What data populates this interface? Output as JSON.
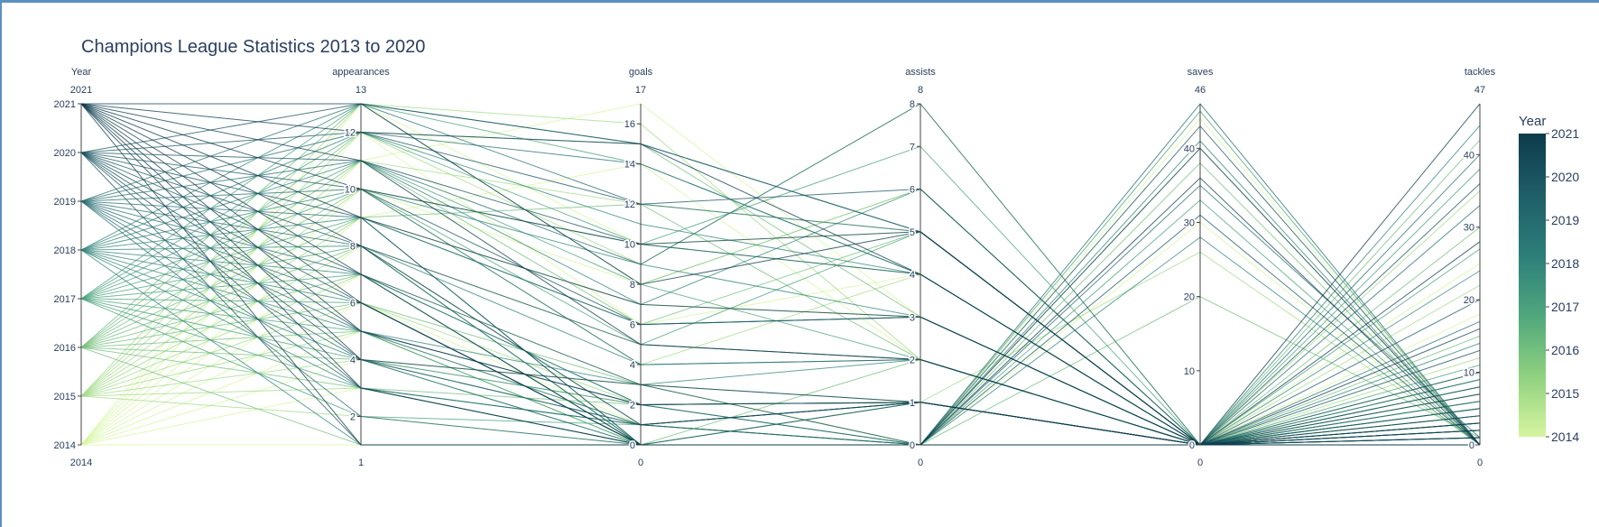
{
  "chart_data": {
    "type": "parallel_coordinates",
    "title": "Champions League Statistics 2013 to 2020",
    "dimensions": [
      {
        "label": "Year",
        "range": [
          2014,
          2021
        ],
        "min_label": "2014",
        "max_label": "2021",
        "ticks": [
          2014,
          2015,
          2016,
          2017,
          2018,
          2019,
          2020,
          2021
        ]
      },
      {
        "label": "appearances",
        "range": [
          1,
          13
        ],
        "min_label": "1",
        "max_label": "13",
        "ticks": [
          2,
          4,
          6,
          8,
          10,
          12
        ]
      },
      {
        "label": "goals",
        "range": [
          0,
          17
        ],
        "min_label": "0",
        "max_label": "17",
        "ticks": [
          0,
          2,
          4,
          6,
          8,
          10,
          12,
          14,
          16
        ]
      },
      {
        "label": "assists",
        "range": [
          0,
          8
        ],
        "min_label": "0",
        "max_label": "8",
        "ticks": [
          0,
          1,
          2,
          3,
          4,
          5,
          6,
          7,
          8
        ]
      },
      {
        "label": "saves",
        "range": [
          0,
          46
        ],
        "min_label": "0",
        "max_label": "46",
        "ticks": [
          0,
          10,
          20,
          30,
          40
        ]
      },
      {
        "label": "tackles",
        "range": [
          0,
          47
        ],
        "min_label": "0",
        "max_label": "47",
        "ticks": [
          0,
          10,
          20,
          30,
          40
        ]
      }
    ],
    "colorbar": {
      "title": "Year",
      "ticks": [
        2014,
        2015,
        2016,
        2017,
        2018,
        2019,
        2020,
        2021
      ],
      "range": [
        2014,
        2021
      ],
      "colorscale": [
        "#d6f5a0",
        "#8fd17f",
        "#4fa77c",
        "#2c7e7a",
        "#1f5e68",
        "#0d3b4c"
      ]
    },
    "series": [
      [
        2014,
        1,
        0,
        0,
        0,
        0
      ],
      [
        2014,
        4,
        2,
        1,
        0,
        3
      ],
      [
        2014,
        8,
        5,
        2,
        0,
        6
      ],
      [
        2014,
        11,
        17,
        3,
        0,
        4
      ],
      [
        2014,
        13,
        10,
        5,
        0,
        2
      ],
      [
        2014,
        6,
        1,
        0,
        44,
        0
      ],
      [
        2014,
        3,
        0,
        1,
        0,
        18
      ],
      [
        2014,
        12,
        6,
        4,
        0,
        9
      ],
      [
        2014,
        7,
        3,
        0,
        0,
        25
      ],
      [
        2014,
        9,
        14,
        2,
        0,
        1
      ],
      [
        2014,
        5,
        0,
        0,
        30,
        0
      ],
      [
        2014,
        10,
        8,
        6,
        0,
        5
      ],
      [
        2015,
        2,
        0,
        0,
        0,
        1
      ],
      [
        2015,
        5,
        1,
        0,
        0,
        7
      ],
      [
        2015,
        9,
        7,
        3,
        0,
        2
      ],
      [
        2015,
        13,
        16,
        2,
        0,
        5
      ],
      [
        2015,
        11,
        12,
        5,
        0,
        3
      ],
      [
        2015,
        7,
        0,
        0,
        40,
        0
      ],
      [
        2015,
        3,
        1,
        1,
        0,
        22
      ],
      [
        2015,
        12,
        9,
        8,
        0,
        8
      ],
      [
        2015,
        6,
        2,
        0,
        0,
        35
      ],
      [
        2015,
        10,
        4,
        4,
        0,
        0
      ],
      [
        2015,
        8,
        0,
        1,
        26,
        0
      ],
      [
        2015,
        4,
        3,
        0,
        0,
        12
      ],
      [
        2016,
        1,
        0,
        0,
        0,
        0
      ],
      [
        2016,
        6,
        3,
        1,
        0,
        4
      ],
      [
        2016,
        10,
        10,
        4,
        0,
        1
      ],
      [
        2016,
        13,
        8,
        6,
        0,
        6
      ],
      [
        2016,
        12,
        15,
        3,
        0,
        2
      ],
      [
        2016,
        7,
        0,
        0,
        38,
        0
      ],
      [
        2016,
        4,
        0,
        2,
        0,
        30
      ],
      [
        2016,
        11,
        6,
        5,
        0,
        10
      ],
      [
        2016,
        8,
        1,
        0,
        0,
        42
      ],
      [
        2016,
        9,
        12,
        2,
        0,
        0
      ],
      [
        2016,
        5,
        0,
        0,
        20,
        1
      ],
      [
        2016,
        3,
        2,
        1,
        0,
        15
      ],
      [
        2017,
        2,
        1,
        0,
        0,
        2
      ],
      [
        2017,
        5,
        0,
        1,
        0,
        9
      ],
      [
        2017,
        9,
        6,
        3,
        0,
        3
      ],
      [
        2017,
        13,
        14,
        4,
        0,
        5
      ],
      [
        2017,
        12,
        10,
        7,
        0,
        1
      ],
      [
        2017,
        6,
        0,
        0,
        45,
        0
      ],
      [
        2017,
        3,
        0,
        0,
        0,
        27
      ],
      [
        2017,
        11,
        8,
        2,
        0,
        7
      ],
      [
        2017,
        7,
        2,
        1,
        0,
        38
      ],
      [
        2017,
        10,
        5,
        5,
        0,
        0
      ],
      [
        2017,
        8,
        0,
        0,
        33,
        0
      ],
      [
        2017,
        4,
        1,
        0,
        0,
        11
      ],
      [
        2018,
        1,
        0,
        0,
        0,
        0
      ],
      [
        2018,
        4,
        2,
        0,
        0,
        6
      ],
      [
        2018,
        8,
        4,
        2,
        0,
        2
      ],
      [
        2018,
        13,
        15,
        5,
        0,
        4
      ],
      [
        2018,
        12,
        11,
        4,
        0,
        3
      ],
      [
        2018,
        7,
        0,
        0,
        41,
        0
      ],
      [
        2018,
        3,
        1,
        1,
        0,
        24
      ],
      [
        2018,
        11,
        7,
        6,
        0,
        8
      ],
      [
        2018,
        6,
        0,
        0,
        0,
        44
      ],
      [
        2018,
        10,
        9,
        3,
        0,
        1
      ],
      [
        2018,
        9,
        0,
        0,
        28,
        0
      ],
      [
        2018,
        5,
        3,
        2,
        0,
        14
      ],
      [
        2019,
        2,
        0,
        0,
        0,
        1
      ],
      [
        2019,
        5,
        1,
        1,
        0,
        5
      ],
      [
        2019,
        9,
        6,
        3,
        0,
        2
      ],
      [
        2019,
        13,
        12,
        5,
        0,
        6
      ],
      [
        2019,
        12,
        14,
        4,
        0,
        3
      ],
      [
        2019,
        8,
        0,
        0,
        46,
        0
      ],
      [
        2019,
        4,
        0,
        0,
        0,
        33
      ],
      [
        2019,
        11,
        9,
        8,
        0,
        9
      ],
      [
        2019,
        7,
        2,
        0,
        0,
        40
      ],
      [
        2019,
        10,
        4,
        2,
        0,
        0
      ],
      [
        2019,
        6,
        0,
        0,
        35,
        1
      ],
      [
        2019,
        3,
        1,
        1,
        0,
        17
      ],
      [
        2020,
        1,
        0,
        0,
        0,
        0
      ],
      [
        2020,
        4,
        1,
        0,
        0,
        8
      ],
      [
        2020,
        8,
        5,
        2,
        0,
        3
      ],
      [
        2020,
        13,
        15,
        5,
        0,
        5
      ],
      [
        2020,
        12,
        12,
        6,
        0,
        2
      ],
      [
        2020,
        6,
        0,
        0,
        43,
        0
      ],
      [
        2020,
        3,
        0,
        1,
        0,
        20
      ],
      [
        2020,
        11,
        10,
        4,
        0,
        10
      ],
      [
        2020,
        7,
        3,
        0,
        0,
        36
      ],
      [
        2020,
        10,
        6,
        3,
        0,
        1
      ],
      [
        2020,
        9,
        0,
        0,
        31,
        0
      ],
      [
        2020,
        5,
        2,
        1,
        0,
        13
      ],
      [
        2021,
        1,
        0,
        0,
        0,
        0
      ],
      [
        2021,
        5,
        2,
        1,
        0,
        4
      ],
      [
        2021,
        9,
        7,
        3,
        0,
        2
      ],
      [
        2021,
        13,
        8,
        5,
        0,
        3
      ],
      [
        2021,
        12,
        15,
        4,
        0,
        1
      ],
      [
        2021,
        10,
        10,
        5,
        0,
        0
      ],
      [
        2021,
        6,
        0,
        0,
        40,
        0
      ],
      [
        2021,
        3,
        0,
        0,
        0,
        28
      ],
      [
        2021,
        11,
        5,
        2,
        0,
        7
      ],
      [
        2021,
        8,
        1,
        1,
        0,
        47
      ],
      [
        2021,
        7,
        0,
        0,
        36,
        0
      ],
      [
        2021,
        4,
        3,
        1,
        0,
        16
      ]
    ]
  }
}
